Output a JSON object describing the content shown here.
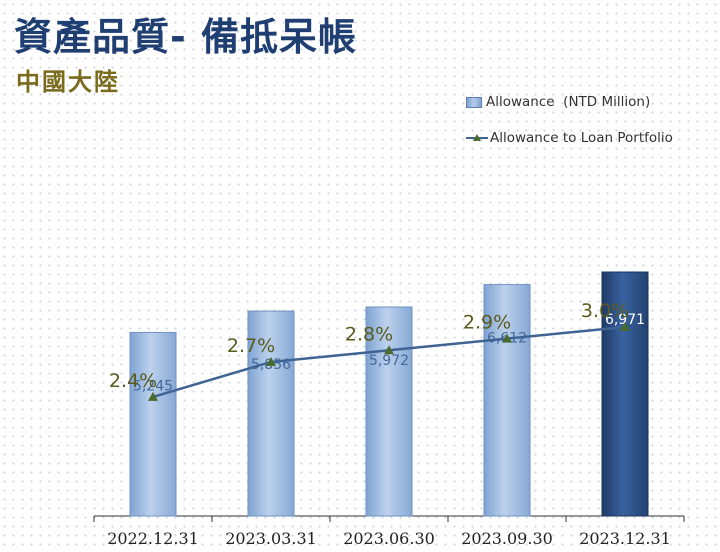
{
  "header": {
    "title": "資產品質- 備抵呆帳",
    "subtitle": "中國大陸"
  },
  "legend": {
    "bar_label": "Allowance  (NTD Million)",
    "line_label": "Allowance to Loan Portfolio"
  },
  "chart_data": {
    "type": "bar",
    "categories": [
      "2022.12.31",
      "2023.03.31",
      "2023.06.30",
      "2023.09.30",
      "2023.12.31"
    ],
    "series": [
      {
        "name": "Allowance  (NTD Million)",
        "type": "bar",
        "values": [
          5245,
          5856,
          5972,
          6612,
          6971
        ],
        "value_labels": [
          "5,245",
          "5,856",
          "5,972",
          "6,612",
          "6,971"
        ]
      },
      {
        "name": "Allowance to Loan Portfolio",
        "type": "line",
        "values": [
          2.4,
          2.7,
          2.8,
          2.9,
          3.0
        ],
        "value_labels": [
          "2.4%",
          "2.7%",
          "2.8%",
          "2.9%",
          "3.0%"
        ]
      }
    ],
    "colors": {
      "bar": "#9dbbe3",
      "bar_highlight": "#2c4f86",
      "line": "#3f6494",
      "marker": "#4a6a2e",
      "line_label": "#5b5b1e",
      "bar_label": "#44689a",
      "bar_label_highlight": "#ffffff",
      "axis": "#333333"
    },
    "grid": false,
    "legend_position": "top-right"
  }
}
